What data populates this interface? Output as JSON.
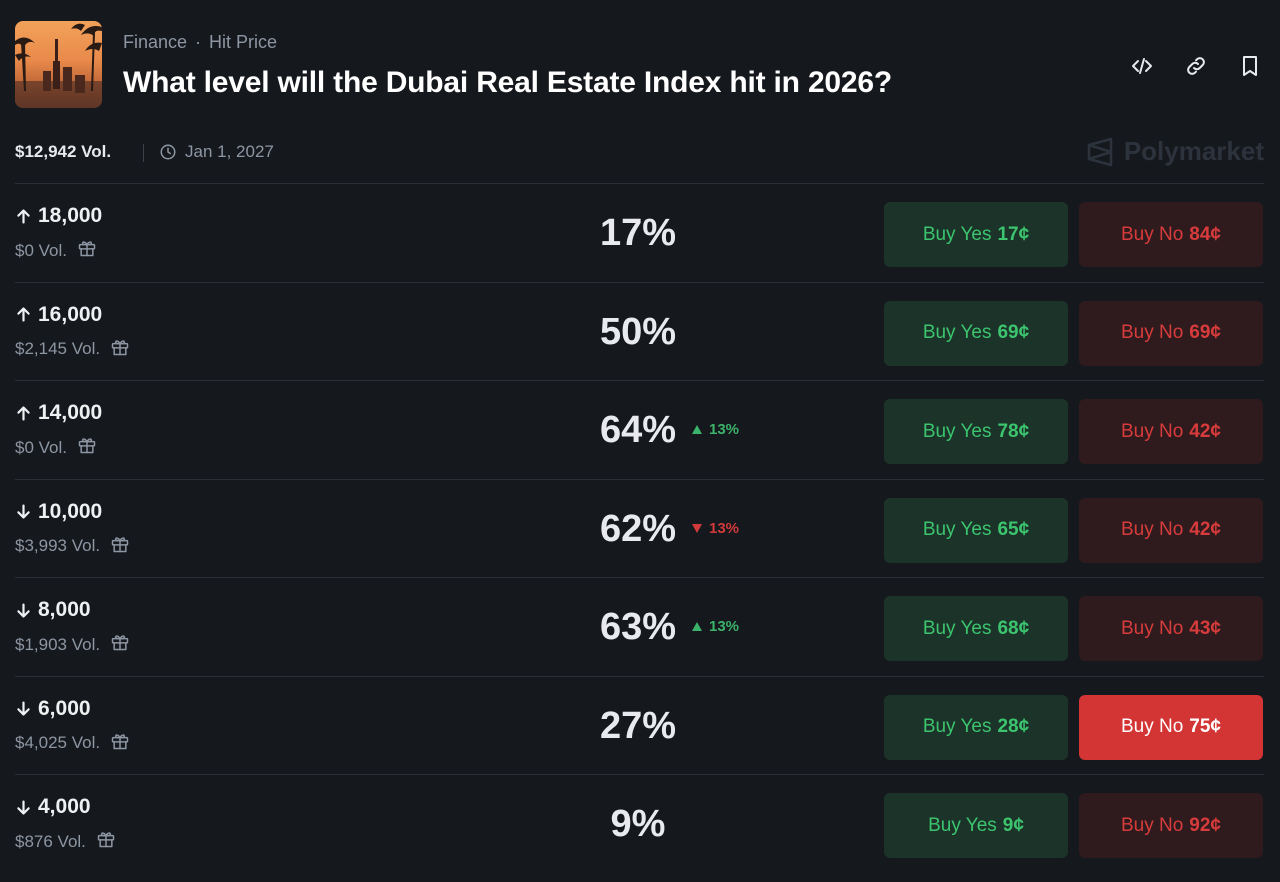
{
  "header": {
    "category": "Finance",
    "separator": "·",
    "subcategory": "Hit Price",
    "title": "What level will the Dubai Real Estate Index hit in 2026?"
  },
  "meta": {
    "total_volume": "$12,942 Vol.",
    "end_date": "Jan 1, 2027",
    "brand": "Polymarket"
  },
  "colors": {
    "background": "#15181d",
    "yes_bg": "#1b3328",
    "yes_text": "#3cc46f",
    "no_bg": "#2f1b1e",
    "no_text": "#d83b3b",
    "no_active_bg": "#d33434",
    "up": "#3bb36a",
    "down": "#d13a3a"
  },
  "rows": [
    {
      "direction": "up",
      "level": "18,000",
      "volume": "$0 Vol.",
      "percent": "17%",
      "change": "",
      "change_dir": "",
      "yes_label": "Buy Yes",
      "yes_price": "17¢",
      "no_label": "Buy No",
      "no_price": "84¢",
      "no_active": false
    },
    {
      "direction": "up",
      "level": "16,000",
      "volume": "$2,145 Vol.",
      "percent": "50%",
      "change": "",
      "change_dir": "",
      "yes_label": "Buy Yes",
      "yes_price": "69¢",
      "no_label": "Buy No",
      "no_price": "69¢",
      "no_active": false
    },
    {
      "direction": "up",
      "level": "14,000",
      "volume": "$0 Vol.",
      "percent": "64%",
      "change": "13%",
      "change_dir": "up",
      "yes_label": "Buy Yes",
      "yes_price": "78¢",
      "no_label": "Buy No",
      "no_price": "42¢",
      "no_active": false
    },
    {
      "direction": "down",
      "level": "10,000",
      "volume": "$3,993 Vol.",
      "percent": "62%",
      "change": "13%",
      "change_dir": "down",
      "yes_label": "Buy Yes",
      "yes_price": "65¢",
      "no_label": "Buy No",
      "no_price": "42¢",
      "no_active": false
    },
    {
      "direction": "down",
      "level": "8,000",
      "volume": "$1,903 Vol.",
      "percent": "63%",
      "change": "13%",
      "change_dir": "up",
      "yes_label": "Buy Yes",
      "yes_price": "68¢",
      "no_label": "Buy No",
      "no_price": "43¢",
      "no_active": false
    },
    {
      "direction": "down",
      "level": "6,000",
      "volume": "$4,025 Vol.",
      "percent": "27%",
      "change": "",
      "change_dir": "",
      "yes_label": "Buy Yes",
      "yes_price": "28¢",
      "no_label": "Buy No",
      "no_price": "75¢",
      "no_active": true
    },
    {
      "direction": "down",
      "level": "4,000",
      "volume": "$876 Vol.",
      "percent": "9%",
      "change": "",
      "change_dir": "",
      "yes_label": "Buy Yes",
      "yes_price": "9¢",
      "no_label": "Buy No",
      "no_price": "92¢",
      "no_active": false
    }
  ],
  "icons": {
    "embed": "code-icon",
    "link": "link-icon",
    "bookmark": "bookmark-icon",
    "clock": "clock-icon",
    "gift": "gift-icon",
    "arrow_up": "arrow-up-icon",
    "arrow_down": "arrow-down-icon",
    "brand_logo": "polymarket-logo-icon"
  }
}
